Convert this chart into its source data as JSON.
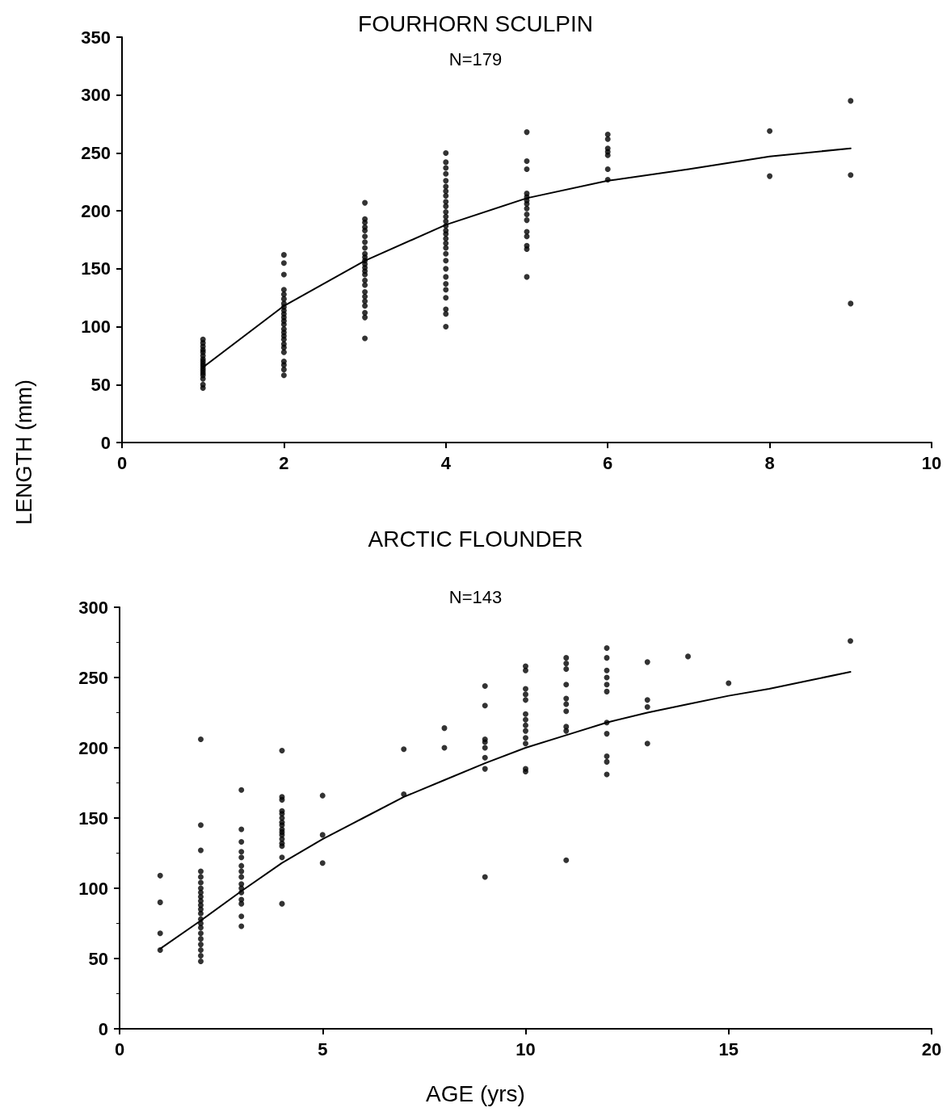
{
  "chart_data": [
    {
      "type": "scatter",
      "title": "FOURHORN SCULPIN",
      "annotations": [
        "N=179"
      ],
      "ylabel": "LENGTH (mm)",
      "xlim": [
        0,
        10
      ],
      "xticks": [
        0,
        2,
        4,
        6,
        8,
        10
      ],
      "ylim": [
        0,
        350
      ],
      "yticks": [
        0,
        50,
        100,
        150,
        200,
        250,
        300,
        350
      ],
      "grid": false,
      "marker": "circle",
      "series": [
        {
          "color": "#000000",
          "x": [
            1,
            1,
            1,
            1,
            1,
            1,
            1,
            1,
            1,
            1,
            1,
            1,
            1,
            1,
            1,
            1,
            1,
            2,
            2,
            2,
            2,
            2,
            2,
            2,
            2,
            2,
            2,
            2,
            2,
            2,
            2,
            2,
            2,
            2,
            2,
            2,
            2,
            2,
            2,
            2,
            2,
            3,
            3,
            3,
            3,
            3,
            3,
            3,
            3,
            3,
            3,
            3,
            3,
            3,
            3,
            3,
            3,
            3,
            3,
            3,
            3,
            3,
            3,
            3,
            3,
            4,
            4,
            4,
            4,
            4,
            4,
            4,
            4,
            4,
            4,
            4,
            4,
            4,
            4,
            4,
            4,
            4,
            4,
            4,
            4,
            4,
            4,
            4,
            4,
            4,
            4,
            4,
            4,
            4,
            5,
            5,
            5,
            5,
            5,
            5,
            5,
            5,
            5,
            5,
            5,
            5,
            5,
            5,
            5,
            6,
            6,
            6,
            6,
            6,
            6,
            6,
            8,
            8,
            9,
            9,
            9
          ],
          "values": [
            47,
            50,
            55,
            58,
            60,
            62,
            64,
            66,
            68,
            70,
            72,
            75,
            78,
            80,
            83,
            86,
            89,
            162,
            155,
            145,
            132,
            128,
            124,
            120,
            117,
            114,
            111,
            108,
            105,
            102,
            98,
            95,
            92,
            89,
            85,
            82,
            78,
            70,
            67,
            63,
            58,
            207,
            193,
            190,
            186,
            183,
            178,
            173,
            168,
            163,
            160,
            157,
            154,
            151,
            148,
            145,
            140,
            136,
            130,
            126,
            122,
            118,
            112,
            108,
            90,
            250,
            242,
            237,
            232,
            226,
            221,
            217,
            213,
            208,
            204,
            199,
            195,
            191,
            187,
            183,
            180,
            176,
            172,
            168,
            163,
            157,
            150,
            143,
            137,
            132,
            125,
            115,
            111,
            100,
            268,
            243,
            236,
            215,
            212,
            209,
            206,
            202,
            197,
            192,
            182,
            178,
            170,
            167,
            143,
            266,
            262,
            254,
            251,
            248,
            236,
            227,
            269,
            230,
            295,
            231,
            120
          ]
        },
        {
          "type": "line",
          "color": "#000000",
          "marker": "none",
          "x": [
            1,
            2,
            3,
            4,
            5,
            6,
            7,
            8,
            9
          ],
          "values": [
            65,
            118,
            157,
            188,
            211,
            226,
            236,
            247,
            254
          ]
        }
      ]
    },
    {
      "type": "scatter",
      "title": "ARCTIC FLOUNDER",
      "annotations": [
        "N=143"
      ],
      "xlabel": "AGE (yrs)",
      "xlim": [
        0,
        20
      ],
      "xticks": [
        0,
        5,
        10,
        15,
        20
      ],
      "ylim": [
        0,
        300
      ],
      "yticks": [
        0,
        50,
        100,
        150,
        200,
        250,
        300
      ],
      "grid": false,
      "marker": "circle",
      "series": [
        {
          "color": "#000000",
          "x": [
            1,
            1,
            1,
            1,
            2,
            2,
            2,
            2,
            2,
            2,
            2,
            2,
            2,
            2,
            2,
            2,
            2,
            2,
            2,
            2,
            2,
            2,
            2,
            2,
            2,
            2,
            3,
            3,
            3,
            3,
            3,
            3,
            3,
            3,
            3,
            3,
            3,
            3,
            3,
            3,
            3,
            4,
            4,
            4,
            4,
            4,
            4,
            4,
            4,
            4,
            4,
            4,
            4,
            4,
            4,
            4,
            4,
            5,
            5,
            5,
            7,
            7,
            8,
            8,
            9,
            9,
            9,
            9,
            9,
            9,
            9,
            9,
            10,
            10,
            10,
            10,
            10,
            10,
            10,
            10,
            10,
            10,
            10,
            10,
            10,
            11,
            11,
            11,
            11,
            11,
            11,
            11,
            11,
            11,
            11,
            12,
            12,
            12,
            12,
            12,
            12,
            12,
            12,
            12,
            12,
            12,
            13,
            13,
            13,
            13,
            14,
            15,
            18
          ],
          "values": [
            109,
            90,
            68,
            56,
            206,
            145,
            127,
            112,
            108,
            104,
            100,
            97,
            94,
            91,
            88,
            85,
            82,
            78,
            75,
            72,
            68,
            64,
            60,
            56,
            52,
            48,
            170,
            142,
            133,
            126,
            122,
            116,
            112,
            108,
            103,
            100,
            97,
            92,
            89,
            80,
            73,
            198,
            165,
            163,
            155,
            153,
            150,
            147,
            145,
            142,
            140,
            138,
            135,
            132,
            130,
            122,
            89,
            166,
            138,
            118,
            199,
            167,
            214,
            200,
            244,
            230,
            206,
            204,
            200,
            193,
            185,
            108,
            258,
            255,
            242,
            238,
            234,
            224,
            220,
            216,
            212,
            207,
            203,
            185,
            183,
            264,
            260,
            256,
            245,
            235,
            231,
            226,
            215,
            212,
            120,
            271,
            264,
            255,
            250,
            245,
            240,
            218,
            210,
            194,
            190,
            181,
            261,
            234,
            229,
            203,
            265,
            246,
            276
          ]
        },
        {
          "type": "line",
          "color": "#000000",
          "marker": "none",
          "x": [
            1,
            2,
            3,
            4,
            5,
            6,
            7,
            8,
            9,
            10,
            11,
            12,
            13,
            14,
            15,
            16,
            17,
            18
          ],
          "values": [
            57,
            77,
            98,
            118,
            135,
            150,
            165,
            177,
            189,
            200,
            209,
            218,
            225,
            231,
            237,
            242,
            248,
            254
          ]
        }
      ]
    }
  ]
}
